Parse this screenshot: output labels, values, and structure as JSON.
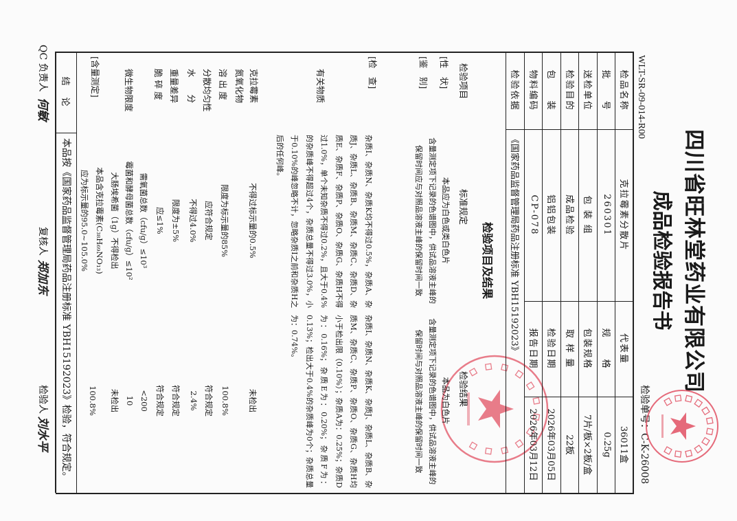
{
  "header": {
    "company": "四川省旺林堂药业有限公司",
    "title": "成品检验报告书",
    "doc_code": "WLT-SR-09-014-R00",
    "report_no": "检验单号：C-K-26008"
  },
  "info": {
    "rows": [
      {
        "label": "检品名称",
        "value": "克拉霉素分散片",
        "label2": "代表量",
        "value2": "36011盒"
      },
      {
        "label": "批　　号",
        "value": "260301",
        "label2": "规　　格",
        "value2": "0.25g"
      },
      {
        "label": "送检单位",
        "value": "包 装 组",
        "label2": "包装规格",
        "value2": "7片/板×2板/盒"
      },
      {
        "label": "检验目的",
        "value": "成品检验",
        "label2": "取 样 量",
        "value2": "22板"
      },
      {
        "label": "包　　装",
        "value": "铝铝包装",
        "label2": "检验日期",
        "value2": "2026年03月05日"
      },
      {
        "label": "物料编码",
        "value": "CP-078",
        "label2": "报告日期",
        "value2": "2026年03月12日"
      }
    ],
    "basis_label": "检验依据",
    "basis_value": "《国家药品监督管理局药品注册标准 YBH15192023》"
  },
  "section_title": "检验项目及结果",
  "columns": {
    "item": "检验项目",
    "standard": "标准规定",
    "result": "检验结果"
  },
  "items": {
    "appearance": {
      "label": "[性　状]",
      "standard": "本品应为白色或类白色片",
      "result": "本品为白色片"
    },
    "identification": {
      "label": "[鉴　别]",
      "standard": "含量测定项下记录的色谱图中，供试品溶液主峰的保留时间应与对照品溶液主峰的保留时间一致",
      "result": "含量测定项下记录的色谱图中，供试品溶液主峰的保留时间与对照品溶液主峰的保留时间一致"
    },
    "check": {
      "label": "[检　查]"
    },
    "related": {
      "label": "有关物质",
      "standard": "杂质I、杂质N、杂质K均不得过0.5%，杂质A、杂质J、杂质L、杂质B、杂质M、杂质C、杂质D、杂质E、杂质F、杂质P、杂质O、杂质G、杂质H不得过1.0%，单个未知杂质不得过0.2%，且大于0.4%的杂质峰不得超过4个，杂质总量不得过3.0%，小于0.10%的峰忽略不计，忽略杂质I之前和杂质H之后的任何峰。",
      "result": "杂质I、杂质N、杂质K、杂质J、杂质L、杂质B、杂质M、杂质C、杂质P、杂质O、杂质G、杂质H均小于检出限（0.10%）；杂质A为：0.25%；杂质D为：0.16%；杂质E为：0.20%；杂质F为：0.13%；检出大于0.4%的杂质峰为0个；杂质总量为：0.74%。"
    },
    "noxide": {
      "label1": "克拉霉素",
      "label2": "氮氧化物",
      "standard": "不得过标示量的0.5%",
      "result": "未检出"
    },
    "dissolution": {
      "label": "溶 出 度",
      "standard": "限度为标示量的85%",
      "result": "100.8%"
    },
    "uniformity": {
      "label": "分散均匀性",
      "standard": "应符合规定",
      "result": "符合规定"
    },
    "water": {
      "label": "水　　分",
      "standard": "不得过4.0%",
      "result": "2.4%"
    },
    "weight": {
      "label": "重量差异",
      "standard": "限度为±5%",
      "result": "符合规定"
    },
    "friability": {
      "label": "脆 碎 度",
      "standard": "应≤1%",
      "result": "符合规定"
    },
    "microbial": {
      "label": "微生物限度",
      "lines": [
        {
          "standard": "需氧菌总数（cfu/g）≤10³",
          "result": "<200"
        },
        {
          "standard": "霉菌和酵母菌总数（cfu/g）≤10²",
          "result": "10"
        },
        {
          "standard": "大肠埃希菌（1g）不得检出",
          "result": "未检出"
        }
      ]
    },
    "assay": {
      "label": "[含量测定]",
      "standard1": "本品含克拉霉素(C₃₈H₆₉NO₁₃)",
      "standard2": "应为标示量的95.0~105.0%",
      "result": "100.8%"
    }
  },
  "conclusion": {
    "label": "结　论",
    "text": "本品按《国家药品监督管理局药品注册标准 YBH15192023》检验，符合规定。"
  },
  "signatures": {
    "qc_label": "QC 负责人",
    "qc_sig": "何敏",
    "review_label": "复核人",
    "review_sig": "郑加东",
    "inspector_label": "检验人",
    "inspector_sig": "刘水平"
  },
  "stamps": {
    "stamp1_ring": "黑龙江省仁皇药业有限公司",
    "stamp1_center": "检验专用章",
    "stamp2_ring": "四川省旺林堂药业有限公司",
    "stamp2_center": "质检专用章",
    "color": "#e0475a"
  }
}
